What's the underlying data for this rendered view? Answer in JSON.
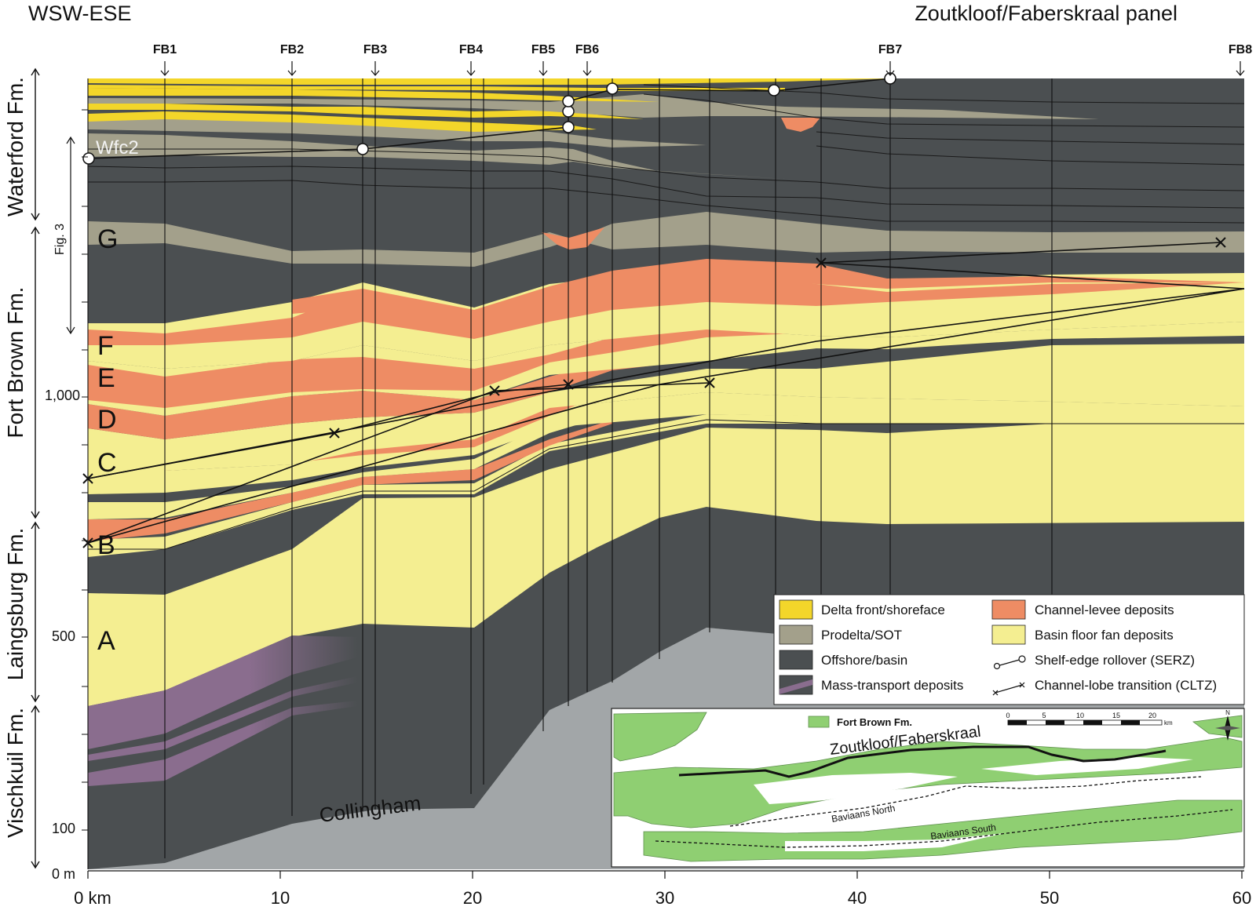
{
  "title_left": "WSW-ESE",
  "title_right": "Zoutkloof/Faberskraal panel",
  "wells": [
    "FB1",
    "FB2",
    "FB3",
    "FB4",
    "FB5",
    "FB6",
    "FB7",
    "FB8"
  ],
  "formations": [
    "Waterford Fm.",
    "Fort Brown Fm.",
    "Laingsburg Fm.",
    "Vischkuil Fm."
  ],
  "units": [
    "Wfc2",
    "G",
    "F",
    "E",
    "D",
    "C",
    "B",
    "A"
  ],
  "collingham_label": "Collingham",
  "fig_ref": "Fig. 3",
  "y_ticks": [
    "1,000",
    "500",
    "100",
    "0 m"
  ],
  "x_ticks": [
    "0 km",
    "10",
    "20",
    "30",
    "40",
    "50",
    "60"
  ],
  "legend": {
    "items": [
      {
        "label": "Delta front/shoreface",
        "color": "#f3d62a"
      },
      {
        "label": "Prodelta/SOT",
        "color": "#a3a08b"
      },
      {
        "label": "Offshore/basin",
        "color": "#4b4f51"
      },
      {
        "label": "Mass-transport deposits",
        "color": "#8a6d8e"
      },
      {
        "label": "Channel-levee deposits",
        "color": "#ee8c64"
      },
      {
        "label": "Basin floor fan deposits",
        "color": "#f4ee91"
      },
      {
        "label": "Shelf-edge rollover (SERZ)",
        "icon": "shelf-edge-rollover-symbol"
      },
      {
        "label": "Channel-lobe transition (CLTZ)",
        "icon": "channel-lobe-transition-symbol"
      }
    ]
  },
  "inset": {
    "legend_label": "Fort Brown Fm.",
    "panel_label": "Zoutkloof/Faberskraal",
    "north_label": "Baviaans North",
    "south_label": "Baviaans South",
    "scale_ticks": [
      "0",
      "5",
      "10",
      "15",
      "20"
    ],
    "scale_unit": "km",
    "north_arrow": "N",
    "land_color": "#8fcf72"
  }
}
